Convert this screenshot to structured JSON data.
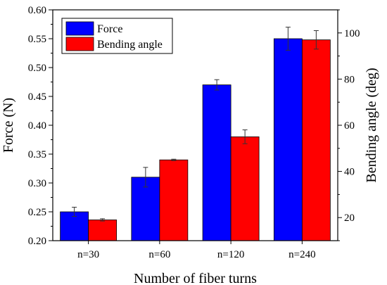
{
  "chart_data": {
    "type": "bar",
    "title": "",
    "xlabel": "Number of fiber turns",
    "ylabel": "Force (N)",
    "y2label": "Bending angle (deg)",
    "categories": [
      "n=30",
      "n=60",
      "n=120",
      "n=240"
    ],
    "ylim": [
      0.2,
      0.6
    ],
    "y2lim": [
      10,
      110
    ],
    "yticks": [
      "0.20",
      "0.25",
      "0.30",
      "0.35",
      "0.40",
      "0.45",
      "0.50",
      "0.55",
      "0.60"
    ],
    "y2ticks": [
      "20",
      "40",
      "60",
      "80",
      "100"
    ],
    "series": [
      {
        "name": "Force",
        "axis": "left",
        "color": "#0000ff",
        "values": [
          0.25,
          0.31,
          0.47,
          0.55
        ],
        "errors": [
          0.008,
          0.017,
          0.009,
          0.02
        ]
      },
      {
        "name": "Bending angle",
        "axis": "right",
        "color": "#ff0000",
        "values": [
          19,
          45,
          55,
          97
        ],
        "errors": [
          0.5,
          0.3,
          3,
          4
        ]
      }
    ],
    "legend": "top-left",
    "grid": false
  }
}
